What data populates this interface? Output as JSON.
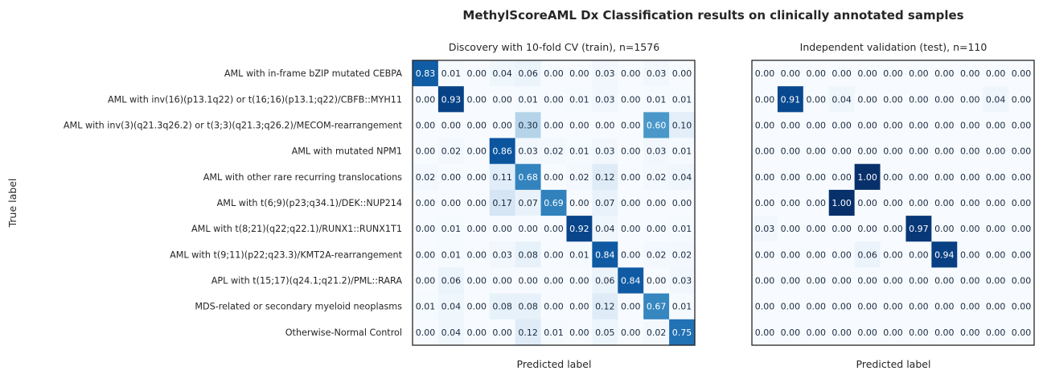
{
  "figure": {
    "suptitle": "MethylScoreAML Dx Classification results on clinically annotated samples"
  },
  "chart_data": [
    {
      "type": "heatmap",
      "title": "Discovery with 10-fold CV (train), n=1576",
      "xlabel": "Predicted label",
      "ylabel": "True label",
      "colormap": "Blues",
      "vmin": 0,
      "vmax": 1,
      "row_labels": [
        "AML with in-frame bZIP mutated CEBPA",
        "AML with inv(16)(p13.1q22) or t(16;16)(p13.1;q22)/CBFB::MYH11",
        "AML with inv(3)(q21.3q26.2) or t(3;3)(q21.3;q26.2)/MECOM-rearrangement",
        "AML with mutated NPM1",
        "AML with other rare recurring translocations",
        "AML with t(6;9)(p23;q34.1)/DEK::NUP214",
        "AML with t(8;21)(q22;q22.1)/RUNX1::RUNX1T1",
        "AML with t(9;11)(p22;q23.3)/KMT2A-rearrangement",
        "APL with t(15;17)(q24.1;q21.2)/PML::RARA",
        "MDS-related or secondary myeloid neoplasms",
        "Otherwise-Normal Control"
      ],
      "matrix": [
        [
          0.83,
          0.01,
          0.0,
          0.04,
          0.06,
          0.0,
          0.0,
          0.03,
          0.0,
          0.03,
          0.0
        ],
        [
          0.0,
          0.93,
          0.0,
          0.0,
          0.01,
          0.0,
          0.01,
          0.03,
          0.0,
          0.01,
          0.01
        ],
        [
          0.0,
          0.0,
          0.0,
          0.0,
          0.3,
          0.0,
          0.0,
          0.0,
          0.0,
          0.6,
          0.1
        ],
        [
          0.0,
          0.02,
          0.0,
          0.86,
          0.03,
          0.02,
          0.01,
          0.03,
          0.0,
          0.03,
          0.01
        ],
        [
          0.02,
          0.0,
          0.0,
          0.11,
          0.68,
          0.0,
          0.02,
          0.12,
          0.0,
          0.02,
          0.04
        ],
        [
          0.0,
          0.0,
          0.0,
          0.17,
          0.07,
          0.69,
          0.0,
          0.07,
          0.0,
          0.0,
          0.0
        ],
        [
          0.0,
          0.01,
          0.0,
          0.0,
          0.0,
          0.0,
          0.92,
          0.04,
          0.0,
          0.0,
          0.01
        ],
        [
          0.0,
          0.01,
          0.0,
          0.03,
          0.08,
          0.0,
          0.01,
          0.84,
          0.0,
          0.02,
          0.02
        ],
        [
          0.0,
          0.06,
          0.0,
          0.0,
          0.0,
          0.0,
          0.0,
          0.06,
          0.84,
          0.0,
          0.03
        ],
        [
          0.01,
          0.04,
          0.0,
          0.08,
          0.08,
          0.0,
          0.0,
          0.12,
          0.0,
          0.67,
          0.01
        ],
        [
          0.0,
          0.04,
          0.0,
          0.0,
          0.12,
          0.01,
          0.0,
          0.05,
          0.0,
          0.02,
          0.75
        ]
      ]
    },
    {
      "type": "heatmap",
      "title": "Independent validation (test), n=110",
      "xlabel": "Predicted label",
      "colormap": "Blues",
      "vmin": 0,
      "vmax": 1,
      "matrix": [
        [
          0.0,
          0.0,
          0.0,
          0.0,
          0.0,
          0.0,
          0.0,
          0.0,
          0.0,
          0.0,
          0.0
        ],
        [
          0.0,
          0.91,
          0.0,
          0.04,
          0.0,
          0.0,
          0.0,
          0.0,
          0.0,
          0.04,
          0.0
        ],
        [
          0.0,
          0.0,
          0.0,
          0.0,
          0.0,
          0.0,
          0.0,
          0.0,
          0.0,
          0.0,
          0.0
        ],
        [
          0.0,
          0.0,
          0.0,
          0.0,
          0.0,
          0.0,
          0.0,
          0.0,
          0.0,
          0.0,
          0.0
        ],
        [
          0.0,
          0.0,
          0.0,
          0.0,
          1.0,
          0.0,
          0.0,
          0.0,
          0.0,
          0.0,
          0.0
        ],
        [
          0.0,
          0.0,
          0.0,
          1.0,
          0.0,
          0.0,
          0.0,
          0.0,
          0.0,
          0.0,
          0.0
        ],
        [
          0.03,
          0.0,
          0.0,
          0.0,
          0.0,
          0.0,
          0.97,
          0.0,
          0.0,
          0.0,
          0.0
        ],
        [
          0.0,
          0.0,
          0.0,
          0.0,
          0.06,
          0.0,
          0.0,
          0.94,
          0.0,
          0.0,
          0.0
        ],
        [
          0.0,
          0.0,
          0.0,
          0.0,
          0.0,
          0.0,
          0.0,
          0.0,
          0.0,
          0.0,
          0.0
        ],
        [
          0.0,
          0.0,
          0.0,
          0.0,
          0.0,
          0.0,
          0.0,
          0.0,
          0.0,
          0.0,
          0.0
        ],
        [
          0.0,
          0.0,
          0.0,
          0.0,
          0.0,
          0.0,
          0.0,
          0.0,
          0.0,
          0.0,
          0.0
        ]
      ]
    }
  ]
}
